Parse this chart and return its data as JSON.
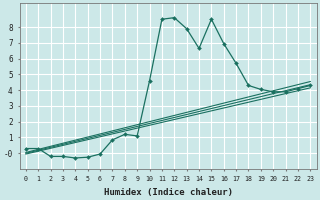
{
  "xlabel": "Humidex (Indice chaleur)",
  "ylabel": "",
  "bg_color": "#cce8e8",
  "grid_color": "#ffffff",
  "line_color": "#1a7060",
  "xlim": [
    -0.5,
    23.5
  ],
  "ylim": [
    -1.0,
    9.5
  ],
  "xticks": [
    0,
    1,
    2,
    3,
    4,
    5,
    6,
    7,
    8,
    9,
    10,
    11,
    12,
    13,
    14,
    15,
    16,
    17,
    18,
    19,
    20,
    21,
    22,
    23
  ],
  "yticks": [
    0,
    1,
    2,
    3,
    4,
    5,
    6,
    7,
    8
  ],
  "main_line": {
    "x": [
      0,
      1,
      2,
      3,
      4,
      5,
      6,
      7,
      8,
      9,
      10,
      11,
      12,
      13,
      14,
      15,
      16,
      17,
      18,
      19,
      20,
      21,
      22,
      23
    ],
    "y": [
      0.3,
      0.3,
      -0.2,
      -0.2,
      -0.3,
      -0.25,
      -0.05,
      0.85,
      1.2,
      1.1,
      4.6,
      8.5,
      8.6,
      7.9,
      6.65,
      8.5,
      6.95,
      5.7,
      4.3,
      4.05,
      3.9,
      3.9,
      4.1,
      4.3
    ]
  },
  "linear_lines": [
    {
      "x": [
        0,
        23
      ],
      "y": [
        -0.05,
        4.15
      ]
    },
    {
      "x": [
        0,
        23
      ],
      "y": [
        -0.0,
        4.35
      ]
    },
    {
      "x": [
        0,
        23
      ],
      "y": [
        0.05,
        4.55
      ]
    }
  ]
}
